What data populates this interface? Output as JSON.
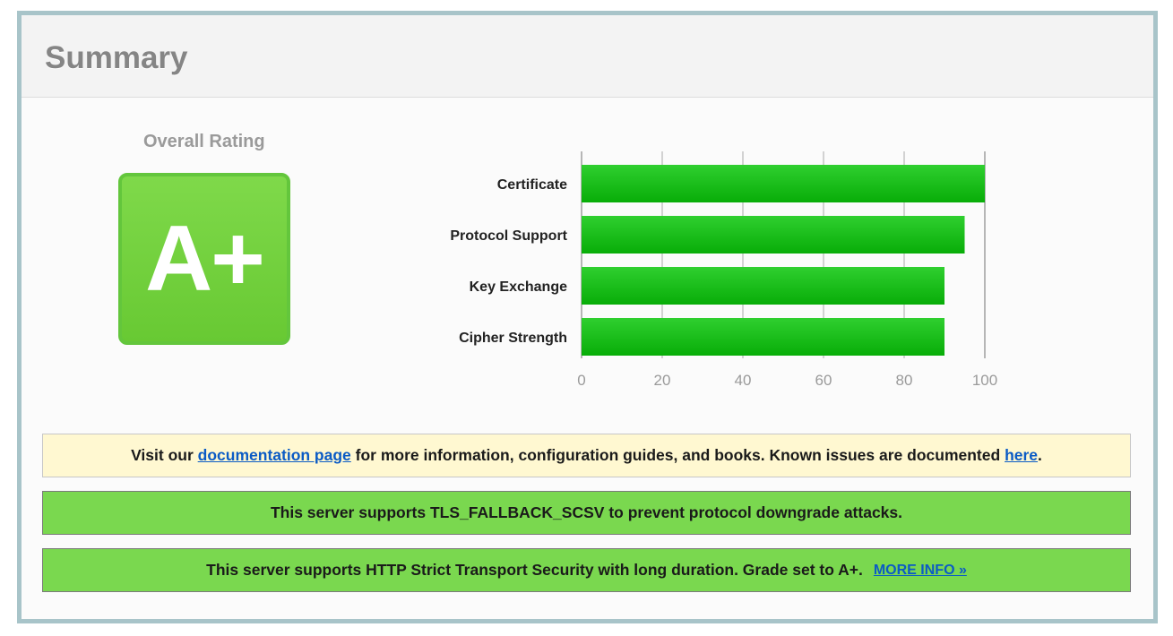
{
  "summary": {
    "title": "Summary",
    "rating_label": "Overall Rating",
    "grade": "A+"
  },
  "chart_data": {
    "type": "bar",
    "orientation": "horizontal",
    "categories": [
      "Certificate",
      "Protocol Support",
      "Key Exchange",
      "Cipher Strength"
    ],
    "values": [
      100,
      95,
      90,
      90
    ],
    "xlim": [
      0,
      100
    ],
    "ticks": [
      "0",
      "20",
      "40",
      "60",
      "80",
      "100"
    ],
    "grid": true,
    "bar_color": "#11b811"
  },
  "notices": {
    "doc": {
      "prefix": "Visit our",
      "link1": "documentation page",
      "middle": "for more information, configuration guides, and books. Known issues are documented",
      "link2": "here",
      "suffix": "."
    },
    "fallback": {
      "prefix": "This server supports",
      "code": "TLS_FALLBACK_SCSV",
      "suffix": "to prevent protocol downgrade attacks."
    },
    "hsts": {
      "text": "This server supports HTTP Strict Transport Security with long duration. Grade set to A+.",
      "link": "MORE INFO »"
    }
  },
  "colors": {
    "border": "#a8c4c9",
    "grade_green": "#6fcf3e",
    "notice_yellow": "#fff8d1",
    "notice_green": "#7ad84f",
    "link": "#0b5bc5"
  }
}
